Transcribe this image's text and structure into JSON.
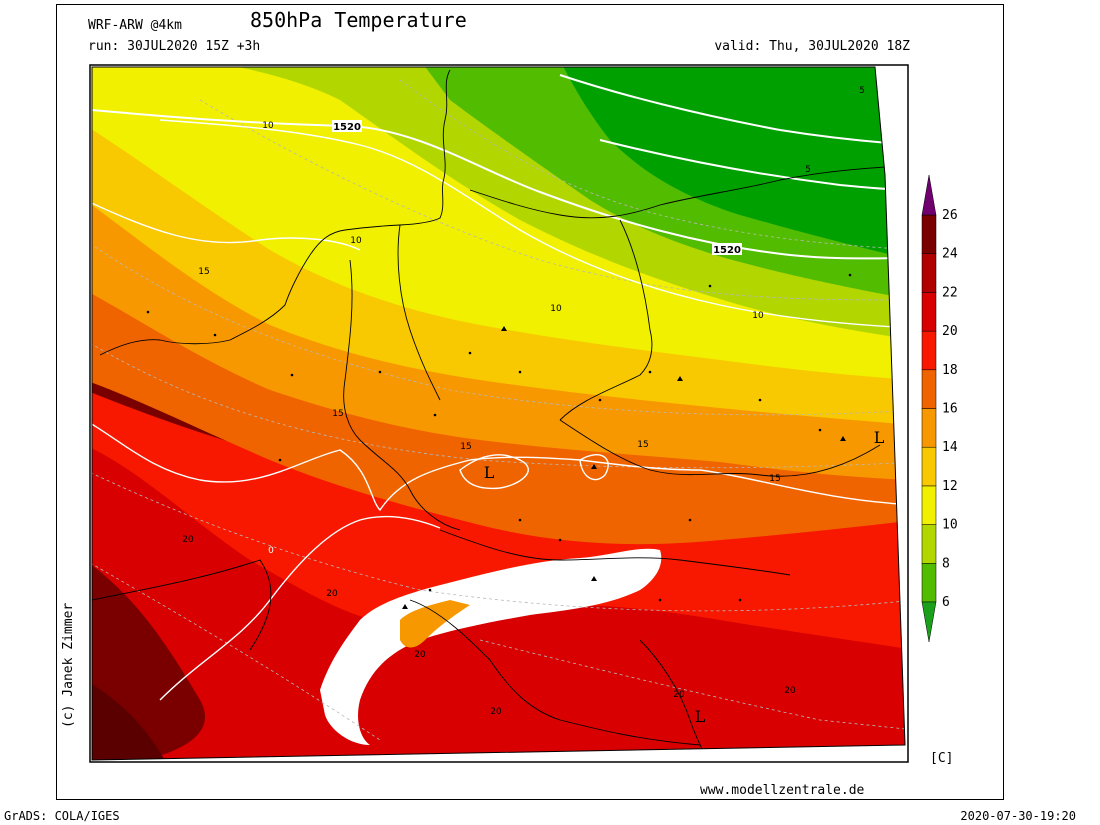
{
  "header": {
    "model": "WRF-ARW @4km",
    "title": "850hPa Temperature",
    "run": "run: 30JUL2020 15Z +3h",
    "valid": "valid: Thu, 30JUL2020 18Z"
  },
  "footer": {
    "website": "www.modellzentrale.de",
    "software": "GrADS: COLA/IGES",
    "timestamp": "2020-07-30-19:20",
    "credit": "(c) Janek Zimmer"
  },
  "colorbar": {
    "unit": "[C]",
    "levels": [
      6,
      8,
      10,
      12,
      14,
      16,
      18,
      20,
      22,
      24,
      26
    ],
    "labels": [
      "6",
      "8",
      "10",
      "12",
      "14",
      "16",
      "18",
      "20",
      "22",
      "24",
      "26"
    ],
    "colors": [
      "#00a000",
      "#52bc00",
      "#b2d600",
      "#f0f000",
      "#f8c800",
      "#f89800",
      "#f06400",
      "#f81800",
      "#d80000",
      "#b00000",
      "#7a0000",
      "#5a0000"
    ],
    "underflow_color": "#1aa01a",
    "overflow_color": "#700070"
  },
  "map": {
    "labels": {
      "height_contour": "1520",
      "height_contour_east": "1520",
      "t5_north": "5",
      "t5_east": "5",
      "t10_west": "10",
      "t10_coast": "10",
      "t10_center": "10",
      "t10_east": "10",
      "t15_west": "15",
      "t15_center": "15",
      "t15_south": "15",
      "t15_east": "15",
      "t15_southeast": "15",
      "t20_west": "20",
      "t20_alps": "20",
      "t20_south": "20",
      "t20_italy": "20",
      "t20_balkan": "20",
      "t20_east": "20",
      "t20_small": "0",
      "low_symbol": "L"
    }
  }
}
